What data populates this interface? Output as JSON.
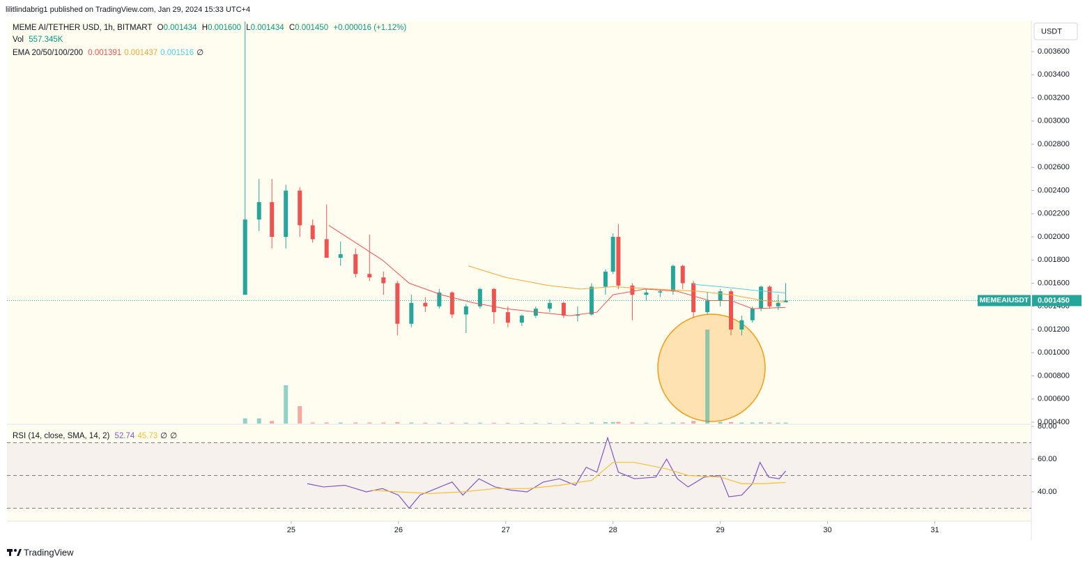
{
  "header": {
    "published": "lilitlindabrig1 published on TradingView.com, Jan 29, 2024 15:33 UTC+4",
    "currency": "USDT",
    "footer": "TradingView"
  },
  "chart_data": [
    {
      "type": "candlestick",
      "title": "MEME AI/TETHER USD, 1h, BITMART",
      "ohlc_labels": [
        "O",
        "H",
        "L",
        "C"
      ],
      "ohlc_values": [
        "0.001434",
        "0.001600",
        "0.001434",
        "0.001450"
      ],
      "change": "+0.000016 (+1.12%)",
      "x": [
        24.57,
        24.7,
        24.82,
        24.95,
        25.08,
        25.2,
        25.33,
        25.46,
        25.6,
        25.73,
        25.86,
        25.99,
        26.12,
        26.25,
        26.38,
        26.5,
        26.63,
        26.76,
        26.89,
        27.02,
        27.15,
        27.28,
        27.41,
        27.54,
        27.67,
        27.8,
        27.93,
        28.0,
        28.05,
        28.18,
        28.31,
        28.44,
        28.56,
        28.65,
        28.75,
        28.88,
        29.0,
        29.1,
        29.2,
        29.3,
        29.38,
        29.46,
        29.54,
        29.61
      ],
      "open": [
        0.0015,
        0.00215,
        0.0023,
        0.002,
        0.0024,
        0.0021,
        0.00198,
        0.00182,
        0.00185,
        0.00168,
        0.00165,
        0.0016,
        0.00125,
        0.00143,
        0.0014,
        0.00152,
        0.00133,
        0.0014,
        0.00155,
        0.00135,
        0.00126,
        0.00132,
        0.00138,
        0.00143,
        0.00132,
        0.00133,
        0.00157,
        0.0017,
        0.002,
        0.00158,
        0.0015,
        0.00152,
        0.00153,
        0.00175,
        0.0016,
        0.00135,
        0.00145,
        0.00153,
        0.0012,
        0.00128,
        0.00138,
        0.00157,
        0.0014,
        0.001434
      ],
      "high": [
        0.00386,
        0.0025,
        0.0025,
        0.00245,
        0.00243,
        0.00215,
        0.00228,
        0.00196,
        0.0019,
        0.00202,
        0.0017,
        0.00162,
        0.0015,
        0.00148,
        0.00155,
        0.00153,
        0.00142,
        0.00156,
        0.00156,
        0.0014,
        0.00133,
        0.0014,
        0.00146,
        0.00144,
        0.0014,
        0.0016,
        0.00172,
        0.00203,
        0.00211,
        0.0016,
        0.00155,
        0.00155,
        0.00176,
        0.00176,
        0.00162,
        0.00152,
        0.00155,
        0.00155,
        0.00132,
        0.0014,
        0.00158,
        0.00158,
        0.0015,
        0.0016
      ],
      "low": [
        0.0015,
        0.00205,
        0.0019,
        0.0019,
        0.002,
        0.00195,
        0.00185,
        0.00175,
        0.00165,
        0.00162,
        0.0015,
        0.00115,
        0.00122,
        0.00135,
        0.00138,
        0.0013,
        0.00117,
        0.00138,
        0.00125,
        0.00122,
        0.00123,
        0.0013,
        0.00135,
        0.0013,
        0.00127,
        0.00132,
        0.0015,
        0.00168,
        0.00155,
        0.00128,
        0.00145,
        0.00148,
        0.0015,
        0.00155,
        0.0013,
        0.00133,
        0.0014,
        0.00115,
        0.00115,
        0.00126,
        0.00136,
        0.00138,
        0.00137,
        0.001434
      ],
      "close": [
        0.00215,
        0.0023,
        0.002,
        0.0024,
        0.0021,
        0.00198,
        0.00182,
        0.00185,
        0.00168,
        0.00165,
        0.0016,
        0.00125,
        0.00143,
        0.0014,
        0.00152,
        0.00133,
        0.0014,
        0.00155,
        0.00135,
        0.00126,
        0.00132,
        0.00138,
        0.00143,
        0.00132,
        0.00133,
        0.00157,
        0.0017,
        0.002,
        0.00158,
        0.0015,
        0.00152,
        0.00153,
        0.00175,
        0.0016,
        0.00135,
        0.00145,
        0.00153,
        0.0012,
        0.00128,
        0.00138,
        0.00157,
        0.0014,
        0.00143,
        0.00145
      ],
      "up_color": "#26a69a",
      "down_color": "#ef5350",
      "volume": {
        "title": "Vol",
        "label": "557.345K",
        "values": [
          3000000,
          3000000,
          1500000,
          22000000,
          10000000,
          600000,
          600000,
          600000,
          600000,
          600000,
          600000,
          800000,
          600000,
          500000,
          500000,
          500000,
          500000,
          500000,
          500000,
          400000,
          400000,
          400000,
          400000,
          400000,
          400000,
          600000,
          800000,
          900000,
          1000000,
          700000,
          500000,
          500000,
          600000,
          600000,
          1500000,
          54000000,
          1000000,
          800000,
          600000,
          600000,
          700000,
          600000,
          500000,
          557345
        ],
        "vlim": [
          0,
          60000000
        ]
      },
      "ema_title": "EMA 20/50/100/200",
      "ema_na": "∅",
      "ema": [
        {
          "color": "#ef5350",
          "label": "0.001391",
          "x": [
            25.35,
            25.6,
            25.85,
            26.1,
            26.4,
            26.7,
            27.0,
            27.3,
            27.6,
            27.85,
            28.0,
            28.3,
            28.6,
            28.9,
            29.1,
            29.3,
            29.61
          ],
          "values": [
            0.0021,
            0.00195,
            0.0018,
            0.0016,
            0.0015,
            0.00143,
            0.00138,
            0.00135,
            0.00132,
            0.00135,
            0.0015,
            0.00155,
            0.00153,
            0.00145,
            0.00145,
            0.00138,
            0.001391
          ]
        },
        {
          "color": "#f7a833",
          "label": "0.001437",
          "x": [
            26.65,
            27.0,
            27.4,
            27.7,
            28.0,
            28.4,
            28.8,
            29.1,
            29.4,
            29.61
          ],
          "values": [
            0.00175,
            0.00165,
            0.00158,
            0.00155,
            0.00157,
            0.00155,
            0.00153,
            0.0015,
            0.00145,
            0.001437
          ]
        },
        {
          "color": "#4dd0e1",
          "label": "0.001516",
          "x": [
            28.75,
            29.0,
            29.3,
            29.61
          ],
          "values": [
            0.00159,
            0.00157,
            0.00154,
            0.001516
          ]
        }
      ],
      "last_price": {
        "symbol": "MEMEAIUSDT",
        "value": 0.00145,
        "label": "0.001450",
        "color": "#26a69a"
      },
      "xlim": [
        22.35,
        31.9
      ],
      "xticks": [
        25,
        26,
        27,
        28,
        29,
        30,
        31
      ],
      "ylim": [
        0.000388,
        0.003865
      ],
      "yticks": [
        {
          "value": 0.0004,
          "label": "0.000400"
        },
        {
          "value": 0.0006,
          "label": "0.000600"
        },
        {
          "value": 0.0008,
          "label": "0.000800"
        },
        {
          "value": 0.001,
          "label": "0.001000"
        },
        {
          "value": 0.0012,
          "label": "0.001200"
        },
        {
          "value": 0.0014,
          "label": "0.001400"
        },
        {
          "value": 0.0016,
          "label": "0.001600"
        },
        {
          "value": 0.0018,
          "label": "0.001800"
        },
        {
          "value": 0.002,
          "label": "0.002000"
        },
        {
          "value": 0.0022,
          "label": "0.002200"
        },
        {
          "value": 0.0024,
          "label": "0.002400"
        },
        {
          "value": 0.0026,
          "label": "0.002600"
        },
        {
          "value": 0.0028,
          "label": "0.002800"
        },
        {
          "value": 0.003,
          "label": "0.003000"
        },
        {
          "value": 0.0032,
          "label": "0.003200"
        },
        {
          "value": 0.0034,
          "label": "0.003400"
        },
        {
          "value": 0.0036,
          "label": "0.003600"
        }
      ],
      "grid": false
    },
    {
      "type": "line",
      "title": "RSI (14, close, SMA, 14, 2)",
      "na_labels": [
        "∅",
        "∅"
      ],
      "series": [
        {
          "color": "#7e57c2",
          "label": "52.74",
          "x": [
            25.15,
            25.3,
            25.5,
            25.7,
            25.85,
            26.0,
            26.1,
            26.2,
            26.35,
            26.5,
            26.6,
            26.75,
            26.9,
            27.05,
            27.2,
            27.35,
            27.5,
            27.65,
            27.75,
            27.85,
            27.95,
            28.05,
            28.2,
            28.4,
            28.5,
            28.6,
            28.7,
            28.85,
            29.0,
            29.08,
            29.2,
            29.3,
            29.37,
            29.45,
            29.55,
            29.61
          ],
          "values": [
            45,
            43,
            44,
            40,
            42,
            38,
            30,
            38,
            42,
            46,
            38,
            48,
            43,
            41,
            40,
            46,
            48,
            44,
            55,
            52,
            73,
            52,
            48,
            49,
            60,
            48,
            43,
            49,
            50,
            37,
            38,
            45,
            58,
            49,
            48,
            52.74
          ]
        },
        {
          "color": "#f2c230",
          "label": "45.73",
          "x": [
            25.75,
            26.0,
            26.3,
            26.6,
            26.9,
            27.2,
            27.5,
            27.8,
            28.0,
            28.2,
            28.5,
            28.7,
            29.0,
            29.2,
            29.4,
            29.61
          ],
          "values": [
            41,
            40,
            39,
            40,
            42,
            42,
            44,
            47,
            58,
            58,
            54,
            50,
            49,
            45,
            45,
            45.73
          ]
        }
      ],
      "levels": [
        70,
        50,
        30
      ],
      "ylim": [
        23.4,
        80
      ],
      "yticks": [
        {
          "value": 40,
          "label": "40.00"
        },
        {
          "value": 60,
          "label": "60.00"
        },
        {
          "value": 80,
          "label": "80.00"
        }
      ]
    }
  ]
}
